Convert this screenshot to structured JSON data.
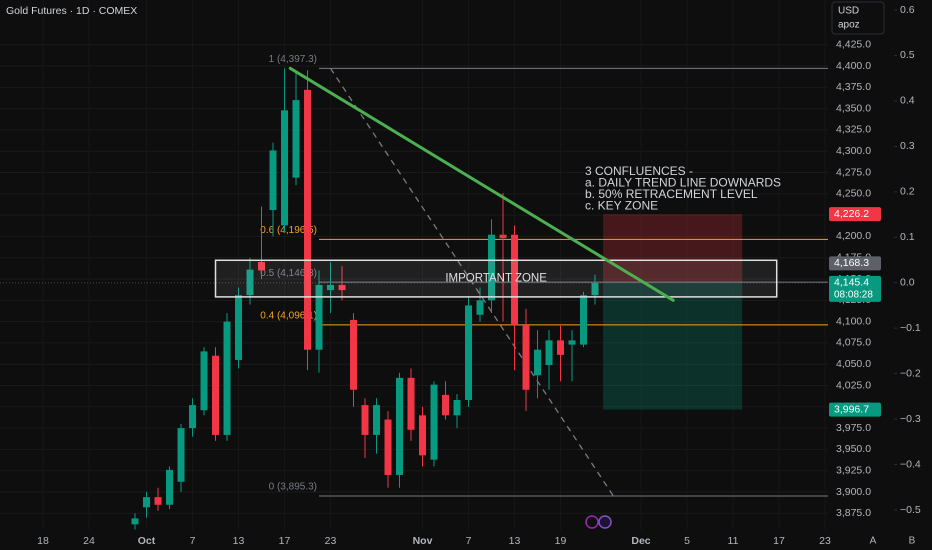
{
  "chart_data": {
    "type": "candlestick",
    "title": "Gold Futures · 1D · COMEX",
    "currency": "USD",
    "scale_name": "apoz",
    "scale_buttons": [
      "A",
      "B"
    ],
    "x": [
      8,
      9,
      10,
      11,
      12,
      13,
      14,
      15,
      16,
      17,
      18,
      19,
      20,
      21,
      22,
      23,
      24,
      25,
      26,
      27,
      28,
      29,
      30,
      31,
      32,
      33,
      34,
      35,
      36,
      37,
      38,
      39,
      40,
      41,
      42,
      43,
      44,
      45,
      46,
      47,
      48
    ],
    "open": [
      3862,
      3882,
      3894,
      3885,
      3912,
      3975,
      3996,
      4060,
      3967,
      4055,
      4131,
      4170,
      4231,
      4213,
      4269,
      4372,
      4067,
      4137,
      4143,
      4102,
      4002,
      3967,
      3985,
      3920,
      4034,
      3990,
      3938,
      4014,
      3990,
      4008,
      4108,
      4125,
      4202,
      4202,
      4096,
      4037,
      4049,
      4078,
      4073,
      4073,
      4131
    ],
    "high": [
      3875,
      3900,
      3905,
      3930,
      3980,
      4010,
      4070,
      4070,
      4110,
      4140,
      4175,
      4235,
      4310,
      4397.3,
      4392,
      4395,
      4160,
      4170,
      4165,
      4110,
      4010,
      4010,
      3995,
      4040,
      4045,
      4000,
      4030,
      4030,
      4015,
      4130,
      4140,
      4220,
      4251,
      4213,
      4115,
      4090,
      4090,
      4095,
      4090,
      4135,
      4155
    ],
    "low": [
      3856,
      3870,
      3878,
      3880,
      3900,
      3965,
      3990,
      3960,
      3960,
      4045,
      4120,
      4150,
      4200,
      4205,
      4260,
      4043,
      4040,
      4110,
      4125,
      4000,
      3940,
      3945,
      3905,
      3905,
      3960,
      3930,
      3930,
      3985,
      3975,
      4000,
      4100,
      4110,
      4100,
      4043,
      3995,
      4010,
      4020,
      4030,
      4030,
      4070,
      4120
    ],
    "close": [
      3869,
      3894,
      3885,
      3926,
      3975,
      4002,
      4065,
      3967,
      4100,
      4131,
      4161,
      4160,
      4301,
      4348,
      4360,
      4067,
      4143,
      4143,
      4137,
      4020,
      3967,
      4002,
      3920,
      4034,
      3973,
      3943,
      4026,
      3990,
      4008,
      4119,
      4125,
      4202,
      4198,
      4096,
      4020,
      4067,
      4078,
      4061,
      4078,
      4131,
      4145.4
    ],
    "up_color": "#089981",
    "down_color": "#f23645",
    "xlim": [
      -3.74,
      68.26
    ],
    "xticks": [
      {
        "value": 0,
        "label": "18"
      },
      {
        "value": 4,
        "label": "24"
      },
      {
        "value": 9,
        "label": "Oct"
      },
      {
        "value": 13,
        "label": "7"
      },
      {
        "value": 17,
        "label": "13"
      },
      {
        "value": 21,
        "label": "17"
      },
      {
        "value": 25,
        "label": "23"
      },
      {
        "value": 33,
        "label": "Nov"
      },
      {
        "value": 37,
        "label": "7"
      },
      {
        "value": 41,
        "label": "13"
      },
      {
        "value": 45,
        "label": "19"
      },
      {
        "value": 52,
        "label": "Dec"
      },
      {
        "value": 56,
        "label": "5"
      },
      {
        "value": 60,
        "label": "11"
      },
      {
        "value": 64,
        "label": "17"
      },
      {
        "value": 68,
        "label": "23"
      }
    ],
    "ylim": [
      3855.4,
      4477.5
    ],
    "yticks": [
      {
        "value": 3875,
        "label": "3,875.0"
      },
      {
        "value": 3900,
        "label": "3,900.0"
      },
      {
        "value": 3925,
        "label": "3,925.0"
      },
      {
        "value": 3950,
        "label": "3,950.0"
      },
      {
        "value": 3975,
        "label": "3,975.0"
      },
      {
        "value": 4000,
        "label": "4,000.0"
      },
      {
        "value": 4025,
        "label": "4,025.0"
      },
      {
        "value": 4050,
        "label": "4,050.0"
      },
      {
        "value": 4075,
        "label": "4,075.0"
      },
      {
        "value": 4100,
        "label": "4,100.0"
      },
      {
        "value": 4125,
        "label": "4,125.0"
      },
      {
        "value": 4150,
        "label": "4,150.0"
      },
      {
        "value": 4175,
        "label": "4,175.0"
      },
      {
        "value": 4200,
        "label": "4,200.0"
      },
      {
        "value": 4225,
        "label": "4,225.0"
      },
      {
        "value": 4250,
        "label": "4,250.0"
      },
      {
        "value": 4275,
        "label": "4,275.0"
      },
      {
        "value": 4300,
        "label": "4,300.0"
      },
      {
        "value": 4325,
        "label": "4,325.0"
      },
      {
        "value": 4350,
        "label": "4,350.0"
      },
      {
        "value": 4375,
        "label": "4,375.0"
      },
      {
        "value": 4400,
        "label": "4,400.0"
      },
      {
        "value": 4425,
        "label": "4,425.0"
      }
    ],
    "y2lim": [
      -0.544,
      0.622
    ],
    "y2ticks": [
      0.6,
      0.5,
      0.4,
      0.3,
      0.2,
      0.1,
      {
        "value": 0,
        "label": "0.0"
      },
      {
        "value": -0.1,
        "label": "−0.1"
      },
      {
        "value": -0.2,
        "label": "−0.2"
      },
      {
        "value": -0.3,
        "label": "−0.3"
      },
      {
        "value": -0.4,
        "label": "−0.4"
      },
      {
        "value": -0.5,
        "label": "−0.5"
      }
    ],
    "grid": true,
    "fib": {
      "start_x": 24,
      "levels": [
        {
          "price": 4397.3,
          "label": "1 (4,397.3)",
          "color": "#787b86"
        },
        {
          "price": 4196.5,
          "label": "0.6 (4,196.5)",
          "color": "#f7a21b"
        },
        {
          "price": 4146.3,
          "label": "0.5 (4,146.3)",
          "color": "#787b86"
        },
        {
          "price": 4096.1,
          "label": "0.4 (4,096.1)",
          "color": "#f7a21b"
        },
        {
          "price": 3895.3,
          "label": "0 (3,895.3)",
          "color": "#787b86"
        }
      ],
      "diagonal": {
        "x": [
          25,
          49.6
        ],
        "y": [
          4397.3,
          3895.3
        ]
      }
    },
    "trend_line": {
      "x": [
        21.5,
        54.8
      ],
      "y": [
        4397.3,
        4125
      ],
      "color": "#4caf50"
    },
    "zone": {
      "label": "IMPORTANT ZONE",
      "top": 4172,
      "bottom": 4129,
      "x": [
        15,
        63.8
      ]
    },
    "position": {
      "x": [
        48.7,
        60.8
      ],
      "entry": 4145.4,
      "stop": 4226.2,
      "target": 3996.7
    },
    "price_tags": [
      {
        "value": 4226.2,
        "label": "4,226.2",
        "color": "#f23645"
      },
      {
        "value": 4168.3,
        "label": "4,168.3",
        "color": "#5d606b"
      },
      {
        "value": 4145.4,
        "label": "4,145.4",
        "color": "#089981",
        "countdown": "08:08:28"
      },
      {
        "value": 3996.7,
        "label": "3,996.7",
        "color": "#089981"
      }
    ],
    "annotation": [
      "3 CONFLUENCES -",
      "a. DAILY TREND LINE DOWNARDS",
      "b. 50% RETRACEMENT LEVEL",
      "c. KEY ZONE"
    ]
  }
}
